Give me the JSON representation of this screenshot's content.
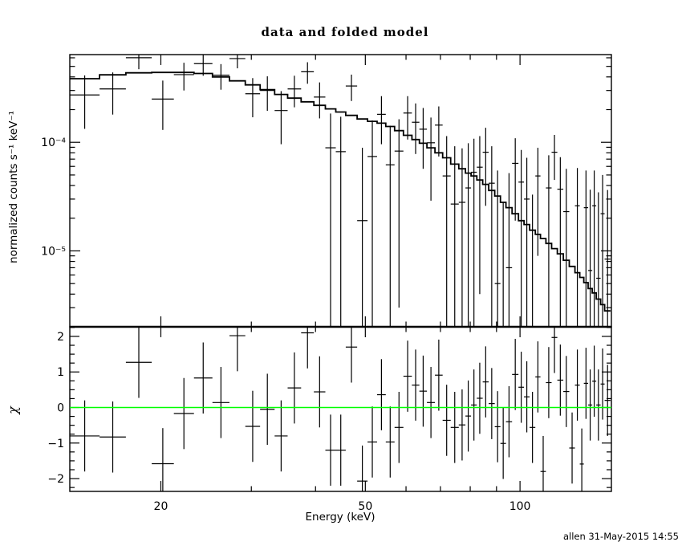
{
  "page": {
    "background": "#ffffff",
    "frame_color": "#000000"
  },
  "footer": {
    "credit": "allen 31-May-2015 14:55"
  },
  "chart_data": {
    "type": "scatter",
    "subtype": "xspec-spectrum-with-residuals",
    "title": "data and folded model",
    "xlabel": "Energy (keV)",
    "xscale": "log",
    "x_range": [
      13.3,
      150.6
    ],
    "x_major_ticks": [
      {
        "value": 20,
        "label": "20"
      },
      {
        "value": 50,
        "label": "50"
      },
      {
        "value": 100,
        "label": "100"
      }
    ],
    "x_minor_ticks": [
      30,
      40,
      60,
      70,
      80,
      90
    ],
    "top_panel": {
      "ylabel": "normalized counts s⁻¹ keV⁻¹",
      "yscale": "log",
      "y_range": [
        2e-06,
        0.000642
      ],
      "y_major_ticks": [
        {
          "value": 0.0001,
          "label": "10⁻⁴"
        },
        {
          "value": 1e-05,
          "label": "10⁻⁵"
        }
      ],
      "series": [
        {
          "name": "data",
          "style": "crosses with error bars",
          "color": "#000000"
        },
        {
          "name": "folded model",
          "style": "step histogram",
          "color": "#000000"
        }
      ]
    },
    "bottom_panel": {
      "ylabel": "χ",
      "yscale": "linear",
      "y_range": [
        -2.36,
        2.27
      ],
      "y_major_ticks": [
        {
          "value": 2,
          "label": "2"
        },
        {
          "value": 1,
          "label": "1"
        },
        {
          "value": 0,
          "label": "0"
        },
        {
          "value": -1,
          "label": "−1"
        },
        {
          "value": -2,
          "label": "−2"
        }
      ],
      "y_minor_step": 0.25,
      "zero_line": {
        "value": 0,
        "color": "#00ff00"
      },
      "residual_error": 1.0
    },
    "columns": [
      "e_lo_keV",
      "e_hi_keV",
      "rate",
      "rate_err",
      "model",
      "chi"
    ],
    "bins": [
      [
        13.3,
        15.2,
        0.000273,
        0.00014,
        0.000385,
        -0.8
      ],
      [
        15.2,
        17.1,
        0.00031,
        0.00013,
        0.000418,
        -0.83
      ],
      [
        17.1,
        19.2,
        0.000601,
        0.00013,
        0.000436,
        1.27
      ],
      [
        19.2,
        21.2,
        0.00025,
        0.00012,
        0.00044,
        -1.58
      ],
      [
        21.2,
        23.2,
        0.00042,
        0.00012,
        0.00044,
        -0.17
      ],
      [
        23.2,
        25.2,
        0.00053,
        0.00012,
        0.00043,
        0.83
      ],
      [
        25.2,
        27.2,
        0.000415,
        0.00011,
        0.0004,
        0.14
      ],
      [
        27.2,
        29.2,
        0.00059,
        0.00011,
        0.000368,
        2.02
      ],
      [
        29.2,
        31.2,
        0.00028,
        0.00011,
        0.000338,
        -0.53
      ],
      [
        31.2,
        33.3,
        0.0003,
        0.000105,
        0.000305,
        -0.05
      ],
      [
        33.3,
        35.3,
        0.000196,
        0.0001,
        0.000276,
        -0.8
      ],
      [
        35.3,
        37.5,
        0.00031,
        0.0001,
        0.000255,
        0.55
      ],
      [
        37.5,
        39.7,
        0.000446,
        0.0001,
        0.000236,
        2.1
      ],
      [
        39.7,
        41.8,
        0.000261,
        9.5e-05,
        0.000219,
        0.44
      ],
      [
        41.8,
        43.8,
        8.9e-05,
        9.5e-05,
        0.000203,
        -1.2
      ],
      [
        43.8,
        45.8,
        8.2e-05,
        9e-05,
        0.00019,
        -1.2
      ],
      [
        45.8,
        48.2,
        0.00033,
        9e-05,
        0.000177,
        1.7
      ],
      [
        48.2,
        50.5,
        1.9e-05,
        7e-05,
        0.000164,
        -2.07
      ],
      [
        50.5,
        52.7,
        7.4e-05,
        8.5e-05,
        0.000156,
        -0.97
      ],
      [
        52.7,
        54.8,
        0.000181,
        8.5e-05,
        0.00015,
        0.36
      ],
      [
        54.8,
        57.0,
        6.2e-05,
        8e-05,
        0.00014,
        -0.97
      ],
      [
        57.0,
        59.3,
        8.3e-05,
        8e-05,
        0.000128,
        -0.56
      ],
      [
        59.3,
        61.6,
        0.000186,
        8e-05,
        0.000116,
        0.88
      ],
      [
        61.6,
        63.7,
        0.000153,
        7.5e-05,
        0.000106,
        0.63
      ],
      [
        63.7,
        65.9,
        0.000132,
        7.5e-05,
        9.8e-05,
        0.46
      ],
      [
        65.9,
        68.3,
        9.9e-05,
        7e-05,
        8.9e-05,
        0.14
      ],
      [
        68.3,
        70.7,
        0.000144,
        7e-05,
        8e-05,
        0.91
      ],
      [
        70.7,
        73.3,
        4.9e-05,
        6.5e-05,
        7.2e-05,
        -0.36
      ],
      [
        73.3,
        76.0,
        2.7e-05,
        6.5e-05,
        6.3e-05,
        -0.56
      ],
      [
        76.0,
        78.3,
        2.8e-05,
        6e-05,
        5.7e-05,
        -0.49
      ],
      [
        78.3,
        80.3,
        3.8e-05,
        6e-05,
        5.2e-05,
        -0.24
      ],
      [
        80.3,
        82.4,
        5.3e-05,
        5.5e-05,
        4.9e-05,
        0.07
      ],
      [
        82.4,
        84.6,
        5.9e-05,
        5.5e-05,
        4.5e-05,
        0.26
      ],
      [
        84.6,
        86.9,
        8.1e-05,
        5.5e-05,
        4.1e-05,
        0.72
      ],
      [
        86.9,
        89.3,
        4.2e-05,
        5e-05,
        3.6e-05,
        0.11
      ],
      [
        89.3,
        91.6,
        5e-06,
        5e-05,
        3.2e-05,
        -0.54
      ],
      [
        91.6,
        93.9,
        -1.8e-05,
        4.6e-05,
        2.8e-05,
        -1.01
      ],
      [
        93.9,
        96.5,
        7e-06,
        4.5e-05,
        2.5e-05,
        -0.4
      ],
      [
        96.5,
        99.3,
        6.4e-05,
        4.5e-05,
        2.2e-05,
        0.93
      ],
      [
        99.3,
        101.8,
        4.3e-05,
        4.2e-05,
        1.9e-05,
        0.57
      ],
      [
        101.8,
        104.4,
        3e-05,
        4.2e-05,
        1.75e-05,
        0.3
      ],
      [
        104.4,
        107.1,
        -7e-06,
        4e-05,
        1.55e-05,
        -0.56
      ],
      [
        107.1,
        109.6,
        4.9e-05,
        4e-05,
        1.42e-05,
        0.86
      ],
      [
        109.6,
        112.3,
        -5.5e-05,
        3.8e-05,
        1.3e-05,
        -1.8
      ],
      [
        112.3,
        115.2,
        3.8e-05,
        3.8e-05,
        1.17e-05,
        0.7
      ],
      [
        115.2,
        118.2,
        8.1e-05,
        3.6e-05,
        1.05e-05,
        1.97
      ],
      [
        118.2,
        121.4,
        3.7e-05,
        3.6e-05,
        9.4e-06,
        0.77
      ],
      [
        121.4,
        124.7,
        2.3e-05,
        3.4e-05,
        8.2e-06,
        0.45
      ],
      [
        124.7,
        127.9,
        -3.2e-05,
        3.4e-05,
        7.2e-06,
        -1.14
      ],
      [
        127.9,
        130.7,
        2.6e-05,
        3.2e-05,
        6.3e-06,
        0.63
      ],
      [
        130.7,
        133.1,
        -4.5e-05,
        3.2e-05,
        5.7e-06,
        -1.59
      ],
      [
        133.1,
        135.7,
        2.5e-05,
        3e-05,
        5.1e-06,
        0.68
      ],
      [
        135.7,
        138.2,
        6.6e-06,
        3e-05,
        4.5e-06,
        0.07
      ],
      [
        138.2,
        140.7,
        2.6e-05,
        2.9e-05,
        4.1e-06,
        0.74
      ],
      [
        140.7,
        143.5,
        5.6e-06,
        2.9e-05,
        3.6e-06,
        0.07
      ],
      [
        143.5,
        146.1,
        2.2e-05,
        2.8e-05,
        3.2e-06,
        0.66
      ],
      [
        146.1,
        150.0,
        8.4e-06,
        2.8e-05,
        2.8e-06,
        0.2
      ]
    ]
  }
}
